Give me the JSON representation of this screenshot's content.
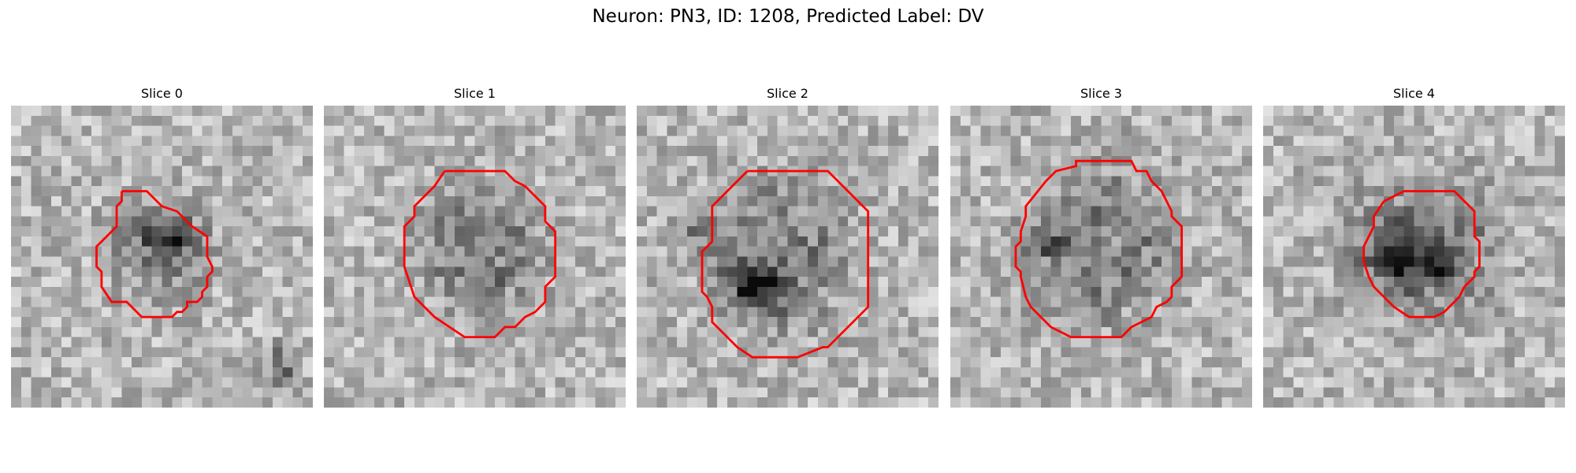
{
  "figure": {
    "title": "Neuron: PN3, ID: 1208, Predicted Label: DV"
  },
  "panels": [
    {
      "title": "Slice 0"
    },
    {
      "title": "Slice 1"
    },
    {
      "title": "Slice 2"
    },
    {
      "title": "Slice 3"
    },
    {
      "title": "Slice 4"
    }
  ],
  "colors": {
    "contour": "#ff0000",
    "background": "#ffffff",
    "colormap": "gray"
  }
}
